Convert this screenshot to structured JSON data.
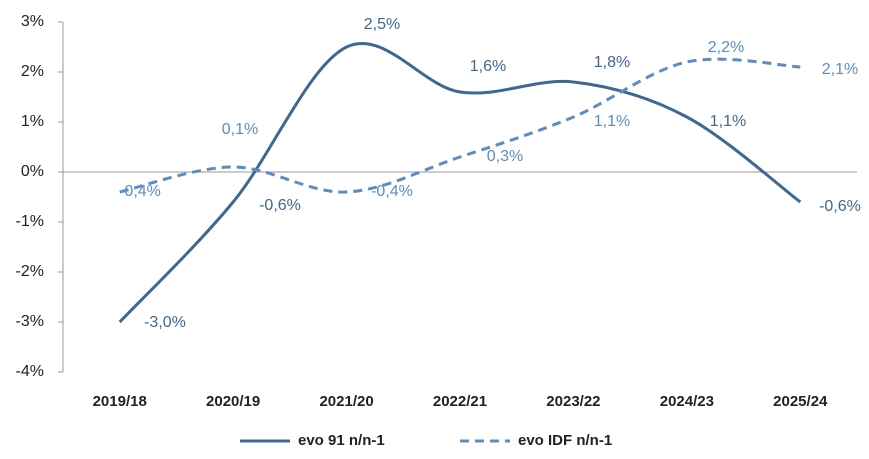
{
  "chart_data": {
    "type": "line",
    "categories": [
      "2019/18",
      "2020/19",
      "2021/20",
      "2022/21",
      "2023/22",
      "2024/23",
      "2025/24"
    ],
    "series": [
      {
        "name": "evo 91 n/n-1",
        "color": "#3f6796",
        "style": "solid",
        "values": [
          -3.0,
          -0.6,
          2.5,
          1.6,
          1.8,
          1.1,
          -0.6
        ],
        "value_labels": [
          "-3,0%",
          "-0,6%",
          "2,5%",
          "1,6%",
          "1,8%",
          "1,1%",
          "-0,6%"
        ]
      },
      {
        "name": "evo IDF n/n-1",
        "color": "#5b8cc4",
        "style": "dashed",
        "values": [
          -0.4,
          0.1,
          -0.4,
          0.3,
          1.1,
          2.2,
          2.1
        ],
        "value_labels": [
          "-0,4%",
          "0,1%",
          "-0,4%",
          "0,3%",
          "1,1%",
          "2,2%",
          "2,1%"
        ]
      }
    ],
    "ylim": [
      -4,
      3
    ],
    "yticks": [
      {
        "value": -4,
        "label": "-4%"
      },
      {
        "value": -3,
        "label": "-3%"
      },
      {
        "value": -2,
        "label": "-2%"
      },
      {
        "value": -1,
        "label": "-1%"
      },
      {
        "value": 0,
        "label": "0%"
      },
      {
        "value": 1,
        "label": "1%"
      },
      {
        "value": 2,
        "label": "2%"
      },
      {
        "value": 3,
        "label": "3%"
      }
    ],
    "legend": "bottom"
  }
}
